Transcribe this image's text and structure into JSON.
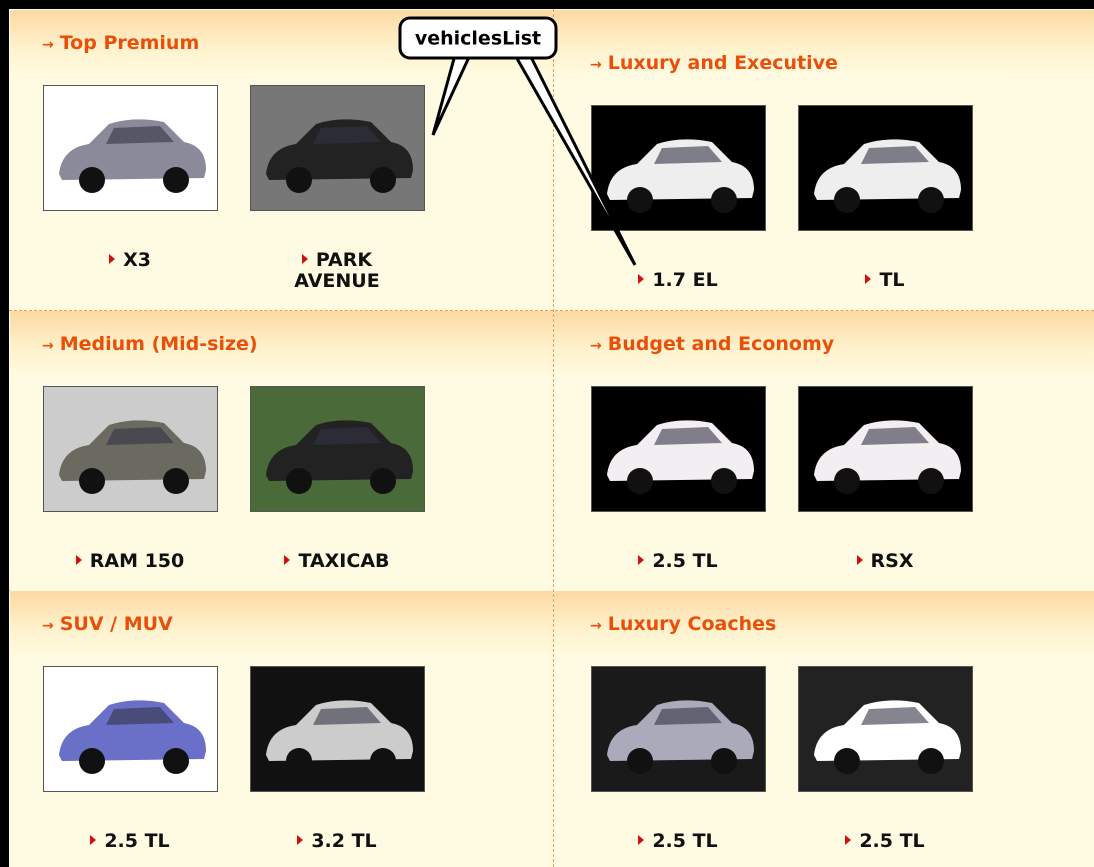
{
  "callout": "vehiclesList",
  "sections": [
    {
      "title": "Top Premium",
      "vehicles": [
        "X3",
        "PARK AVENUE"
      ]
    },
    {
      "title": "Luxury and Executive",
      "vehicles": [
        "1.7 EL",
        "TL"
      ]
    },
    {
      "title": "Medium (Mid-size)",
      "vehicles": [
        "RAM 150",
        "TAXICAB"
      ]
    },
    {
      "title": "Budget and Economy",
      "vehicles": [
        "2.5 TL",
        "RSX"
      ]
    },
    {
      "title": "SUV / MUV",
      "vehicles": [
        "2.5 TL",
        "3.2 TL"
      ]
    },
    {
      "title": "Luxury Coaches",
      "vehicles": [
        "2.5 TL",
        "2.5 TL"
      ]
    }
  ]
}
